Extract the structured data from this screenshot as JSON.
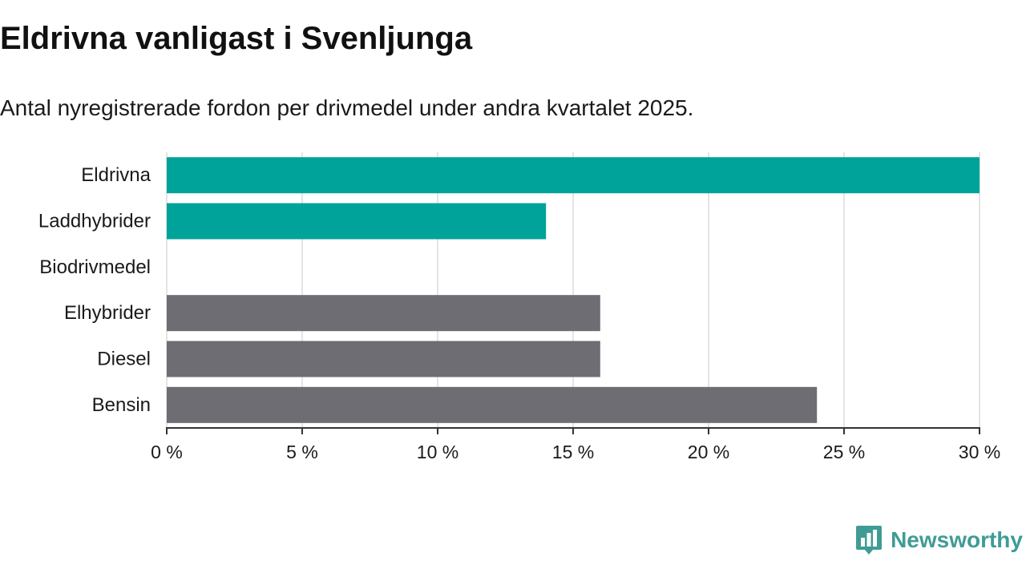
{
  "chart_data": {
    "type": "bar",
    "orientation": "horizontal",
    "title": "Eldrivna vanligast i Svenljunga",
    "subtitle": "Antal nyregistrerade fordon per drivmedel under andra kvartalet 2025.",
    "categories": [
      "Eldrivna",
      "Laddhybrider",
      "Biodrivmedel",
      "Elhybrider",
      "Diesel",
      "Bensin"
    ],
    "values": [
      30,
      14,
      0,
      16,
      16,
      24
    ],
    "bar_colors": [
      "#00a399",
      "#00a399",
      "#00a399",
      "#6e6d73",
      "#6e6d73",
      "#6e6d73"
    ],
    "xlim": [
      0,
      30
    ],
    "x_ticks": [
      0,
      5,
      10,
      15,
      20,
      25,
      30
    ],
    "x_tick_labels": [
      "0 %",
      "5 %",
      "10 %",
      "15 %",
      "20 %",
      "25 %",
      "30 %"
    ],
    "xlabel": "",
    "ylabel": "",
    "grid": true
  },
  "brand": {
    "name": "Newsworthy",
    "icon": "newsworthy-logo-icon",
    "color": "#3f9c95"
  }
}
